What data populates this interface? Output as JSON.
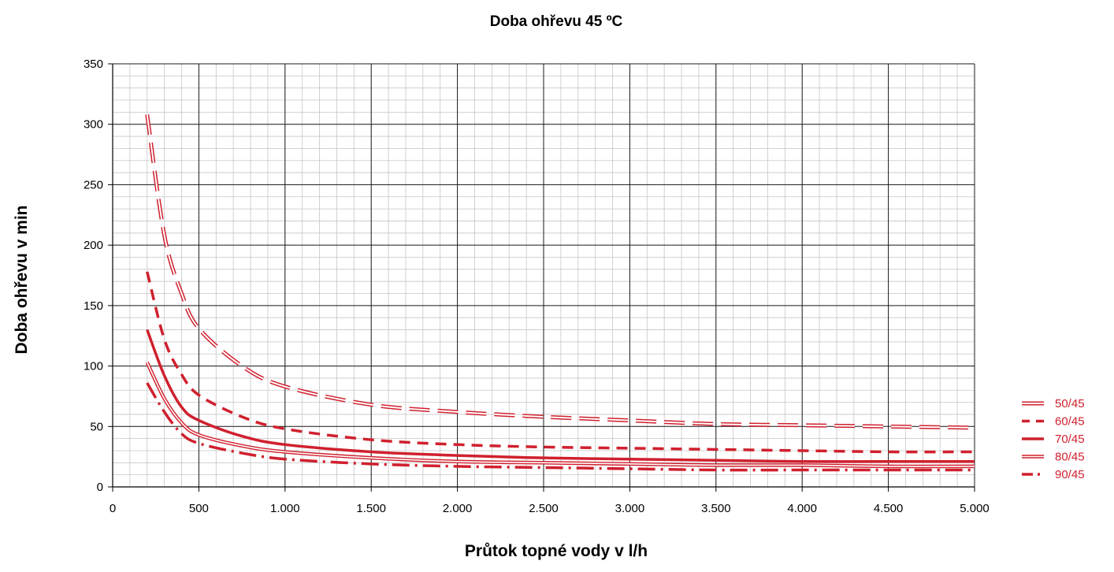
{
  "chart_data": {
    "type": "line",
    "title": "Doba ohřevu  45 ºC",
    "xlabel": "Průtok topné vody v l/h",
    "ylabel": "Doba ohřevu v min",
    "xlim": [
      0,
      5000
    ],
    "ylim": [
      0,
      350
    ],
    "x_ticks": [
      0,
      500,
      1000,
      1500,
      2000,
      2500,
      3000,
      3500,
      4000,
      4500,
      5000
    ],
    "x_tick_labels": [
      "0",
      "500",
      "1.000",
      "1.500",
      "2.000",
      "2.500",
      "3.000",
      "3.500",
      "4.000",
      "4.500",
      "5.000"
    ],
    "y_ticks": [
      0,
      50,
      100,
      150,
      200,
      250,
      300,
      350
    ],
    "y_tick_labels": [
      "0",
      "50",
      "100",
      "150",
      "200",
      "250",
      "300",
      "350"
    ],
    "grid": true,
    "legend_position": "right",
    "color": "#d0202e",
    "series": [
      {
        "name": "50/45",
        "style": "dashed-double",
        "x": [
          200,
          300,
          400,
          500,
          750,
          1000,
          1500,
          2000,
          2500,
          3000,
          3500,
          4000,
          4500,
          5000
        ],
        "y": [
          308,
          208,
          160,
          131,
          100,
          83,
          68,
          62,
          58,
          55,
          52,
          51,
          50,
          49
        ]
      },
      {
        "name": "60/45",
        "style": "dashed-thick",
        "x": [
          200,
          300,
          400,
          500,
          750,
          1000,
          1500,
          2000,
          2500,
          3000,
          3500,
          4000,
          4500,
          5000
        ],
        "y": [
          178,
          122,
          93,
          76,
          58,
          48,
          39,
          35,
          33,
          32,
          31,
          30,
          29,
          29
        ]
      },
      {
        "name": "70/45",
        "style": "solid",
        "x": [
          200,
          300,
          400,
          500,
          750,
          1000,
          1500,
          2000,
          2500,
          3000,
          3500,
          4000,
          4500,
          5000
        ],
        "y": [
          130,
          92,
          66,
          55,
          42,
          35,
          29,
          26,
          24,
          23,
          22,
          21,
          21,
          21
        ]
      },
      {
        "name": "80/45",
        "style": "double",
        "x": [
          200,
          300,
          400,
          500,
          750,
          1000,
          1500,
          2000,
          2500,
          3000,
          3500,
          4000,
          4500,
          5000
        ],
        "y": [
          103,
          73,
          53,
          43,
          34,
          29,
          24,
          21,
          20,
          19,
          18,
          18,
          17,
          17
        ]
      },
      {
        "name": "90/45",
        "style": "dash-dot",
        "x": [
          200,
          300,
          400,
          500,
          750,
          1000,
          1500,
          2000,
          2500,
          3000,
          3500,
          4000,
          4500,
          5000
        ],
        "y": [
          86,
          62,
          44,
          36,
          28,
          23,
          19,
          17,
          16,
          15,
          14,
          14,
          14,
          14
        ]
      }
    ]
  }
}
